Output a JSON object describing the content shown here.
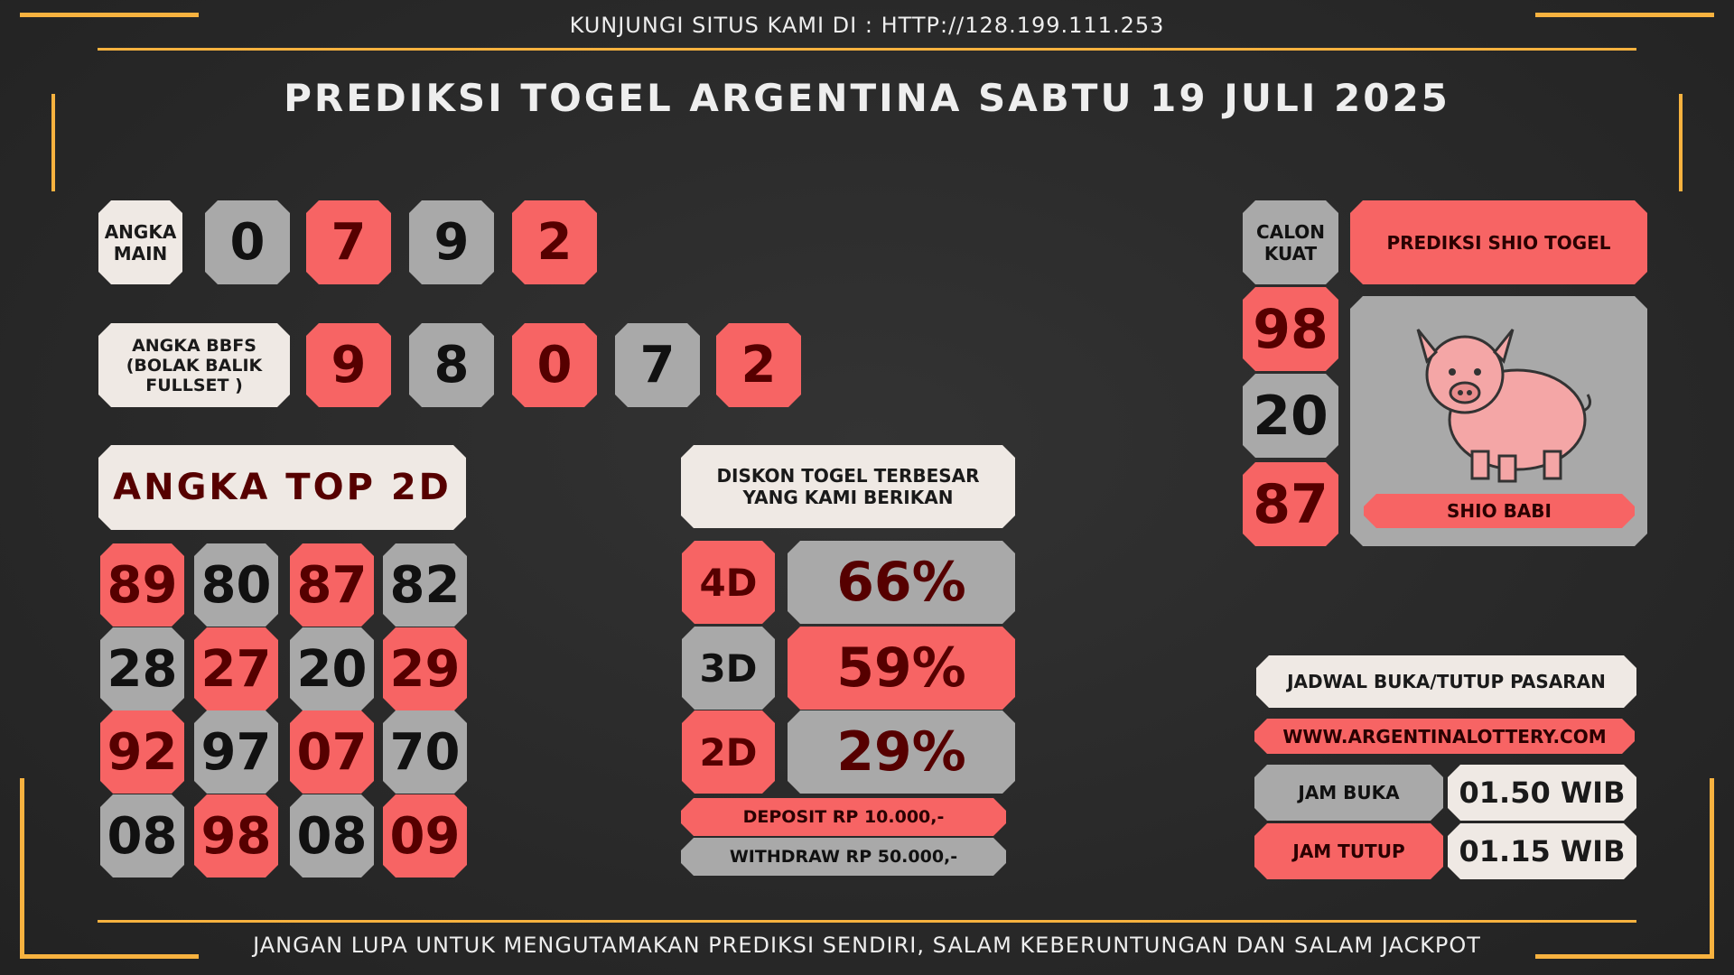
{
  "header": {
    "site_text": "KUNJUNGI SITUS KAMI DI : HTTP://128.199.111.253",
    "title": "PREDIKSI TOGEL ARGENTINA SABTU 19 JULI 2025"
  },
  "angka_main": {
    "label": "ANGKA MAIN",
    "digits": [
      {
        "text": "0",
        "color": "#a9a9a9"
      },
      {
        "text": "7",
        "color": "#f76464"
      },
      {
        "text": "9",
        "color": "#a9a9a9"
      },
      {
        "text": "2",
        "color": "#f76464"
      }
    ]
  },
  "bbfs": {
    "label": "ANGKA BBFS (BOLAK BALIK FULLSET )",
    "digits": [
      {
        "text": "9",
        "color": "#f76464"
      },
      {
        "text": "8",
        "color": "#a9a9a9"
      },
      {
        "text": "0",
        "color": "#f76464"
      },
      {
        "text": "7",
        "color": "#a9a9a9"
      },
      {
        "text": "2",
        "color": "#f76464"
      }
    ]
  },
  "top2d": {
    "title": "ANGKA TOP 2D",
    "rows": [
      [
        {
          "text": "89",
          "color": "#f76464"
        },
        {
          "text": "80",
          "color": "#a9a9a9"
        },
        {
          "text": "87",
          "color": "#f76464"
        },
        {
          "text": "82",
          "color": "#a9a9a9"
        }
      ],
      [
        {
          "text": "28",
          "color": "#a9a9a9"
        },
        {
          "text": "27",
          "color": "#f76464"
        },
        {
          "text": "20",
          "color": "#a9a9a9"
        },
        {
          "text": "29",
          "color": "#f76464"
        }
      ],
      [
        {
          "text": "92",
          "color": "#f76464"
        },
        {
          "text": "97",
          "color": "#a9a9a9"
        },
        {
          "text": "07",
          "color": "#f76464"
        },
        {
          "text": "70",
          "color": "#a9a9a9"
        }
      ],
      [
        {
          "text": "08",
          "color": "#a9a9a9"
        },
        {
          "text": "98",
          "color": "#f76464"
        },
        {
          "text": "08",
          "color": "#a9a9a9"
        },
        {
          "text": "09",
          "color": "#f76464"
        }
      ]
    ]
  },
  "diskon": {
    "title": "DISKON TOGEL TERBESAR YANG KAMI BERIKAN",
    "rows": [
      {
        "label": "4D",
        "value": "66%",
        "label_color": "#f76464",
        "value_color": "#a9a9a9"
      },
      {
        "label": "3D",
        "value": "59%",
        "label_color": "#a9a9a9",
        "value_color": "#f76464"
      },
      {
        "label": "2D",
        "value": "29%",
        "label_color": "#f76464",
        "value_color": "#a9a9a9"
      }
    ],
    "deposit": "DEPOSIT RP 10.000,-",
    "withdraw": "WITHDRAW RP 50.000,-"
  },
  "calon_kuat": {
    "label": "CALON KUAT",
    "numbers": [
      {
        "text": "98",
        "color": "#f76464"
      },
      {
        "text": "20",
        "color": "#a9a9a9"
      },
      {
        "text": "87",
        "color": "#f76464"
      }
    ]
  },
  "shio": {
    "title": "PREDIKSI SHIO TOGEL",
    "name": "SHIO BABI"
  },
  "jadwal": {
    "title": "JADWAL BUKA/TUTUP PASARAN",
    "url": "WWW.ARGENTINALOTTERY.COM",
    "buka_label": "JAM BUKA",
    "buka_value": "01.50 WIB",
    "tutup_label": "JAM TUTUP",
    "tutup_value": "01.15 WIB"
  },
  "footer": "JANGAN LUPA UNTUK MENGUTAMAKAN PREDIKSI SENDIRI, SALAM KEBERUNTUNGAN DAN SALAM JACKPOT"
}
